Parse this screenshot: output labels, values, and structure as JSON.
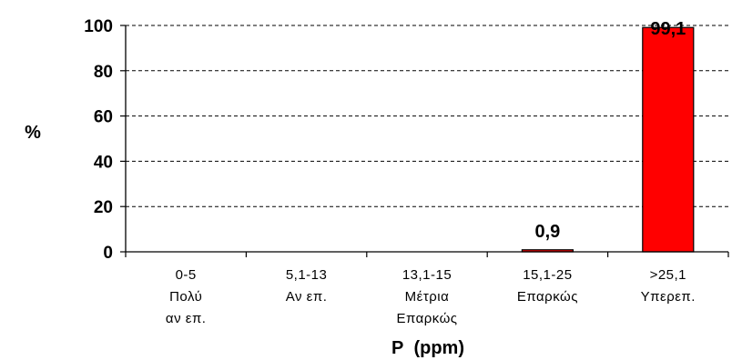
{
  "chart_data": {
    "type": "bar",
    "categories": [
      [
        "0-5",
        "Πολύ",
        "αν επ."
      ],
      [
        "5,1-13",
        "Αν επ."
      ],
      [
        "13,1-15",
        "Μέτρια",
        "Επαρκώς"
      ],
      [
        "15,1-25",
        "Επαρκώς"
      ],
      [
        ">25,1",
        "Υπερεπ."
      ]
    ],
    "values": [
      0,
      0,
      0,
      0.9,
      99.1
    ],
    "data_labels": [
      "",
      "",
      "",
      "0,9",
      "99,1"
    ],
    "ylabel": "%",
    "xlabel": "P (ppm)",
    "ylim": [
      0,
      100
    ],
    "yticks": [
      0,
      20,
      40,
      60,
      80,
      100
    ],
    "grid": "dashed horizontal",
    "bar_color": "#ff0000",
    "bar_outline": "#000000"
  }
}
